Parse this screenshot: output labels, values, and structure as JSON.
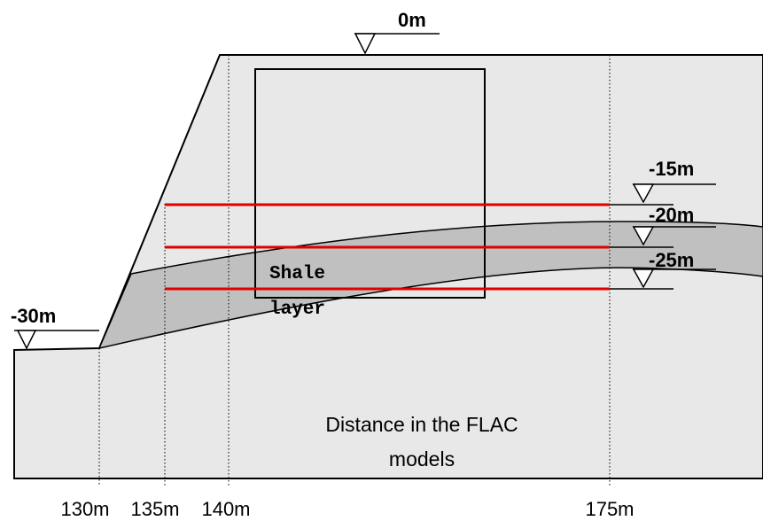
{
  "levels": [
    "0m",
    "-15m",
    "-20m",
    "-25m",
    "-30m"
  ],
  "shale_label": [
    "Shale",
    "layer"
  ],
  "distance_label": [
    "Distance in the FLAC",
    "models"
  ],
  "distances": [
    "130m",
    "135m",
    "140m",
    "175m"
  ]
}
